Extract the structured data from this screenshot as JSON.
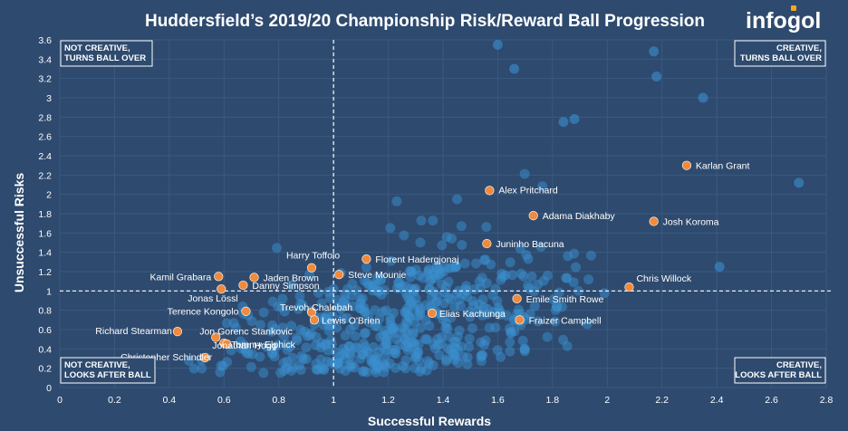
{
  "chart_data": {
    "type": "scatter",
    "title": "Huddersfield’s 2019/20 Championship Risk/Reward Ball Progression",
    "xlabel": "Successful Rewards",
    "ylabel": "Unsuccessful Risks",
    "xlim": [
      0,
      2.8
    ],
    "ylim": [
      0,
      3.6
    ],
    "xticks": [
      0,
      0.2,
      0.4,
      0.6,
      0.8,
      1,
      1.2,
      1.4,
      1.6,
      1.8,
      2,
      2.2,
      2.4,
      2.6,
      2.8
    ],
    "yticks": [
      0,
      0.2,
      0.4,
      0.6,
      0.8,
      1,
      1.2,
      1.4,
      1.6,
      1.8,
      2,
      2.2,
      2.4,
      2.6,
      2.8,
      3,
      3.2,
      3.4,
      3.6
    ],
    "reference_lines": {
      "x": 1,
      "y": 1
    },
    "quadrants": {
      "top_left": [
        "NOT CREATIVE,",
        "TURNS BALL OVER"
      ],
      "top_right": [
        "CREATIVE,",
        "TURNS BALL OVER"
      ],
      "bottom_left": [
        "NOT CREATIVE,",
        "LOOKS AFTER BALL"
      ],
      "bottom_right": [
        "CREATIVE,",
        "LOOKS AFTER BALL"
      ]
    },
    "colors": {
      "background": "#2e4a6e",
      "league_point": "#3a8fd0",
      "highlight_point": "#f08a3c"
    },
    "highlighted": [
      {
        "name": "Karlan Grant",
        "x": 2.29,
        "y": 2.3
      },
      {
        "name": "Alex Pritchard",
        "x": 1.57,
        "y": 2.04
      },
      {
        "name": "Adama Diakhaby",
        "x": 1.73,
        "y": 1.78
      },
      {
        "name": "Josh Koroma",
        "x": 2.17,
        "y": 1.72
      },
      {
        "name": "Juninho Bacuna",
        "x": 1.56,
        "y": 1.49
      },
      {
        "name": "Florent Hadergjonaj",
        "x": 1.12,
        "y": 1.33
      },
      {
        "name": "Harry Toffolo",
        "x": 0.92,
        "y": 1.24
      },
      {
        "name": "Steve Mounie",
        "x": 1.02,
        "y": 1.17
      },
      {
        "name": "Kamil Grabara",
        "x": 0.58,
        "y": 1.15
      },
      {
        "name": "Jaden Brown",
        "x": 0.71,
        "y": 1.14
      },
      {
        "name": "Danny Simpson",
        "x": 0.67,
        "y": 1.06
      },
      {
        "name": "Jonas Lössl",
        "x": 0.59,
        "y": 1.02
      },
      {
        "name": "Chris Willock",
        "x": 2.08,
        "y": 1.04
      },
      {
        "name": "Emile Smith Rowe",
        "x": 1.67,
        "y": 0.92
      },
      {
        "name": "Trevoh Chalobah",
        "x": 0.92,
        "y": 0.78
      },
      {
        "name": "Terence Kongolo",
        "x": 0.68,
        "y": 0.79
      },
      {
        "name": "Elias Kachunga",
        "x": 1.36,
        "y": 0.77
      },
      {
        "name": "Lewis O'Brien",
        "x": 0.93,
        "y": 0.7
      },
      {
        "name": "Fraizer Campbell",
        "x": 1.68,
        "y": 0.7
      },
      {
        "name": "Richard Stearman",
        "x": 0.43,
        "y": 0.58
      },
      {
        "name": "Jon Gorenc Stankovic",
        "x": 0.57,
        "y": 0.52
      },
      {
        "name": "Tommy Elphick",
        "x": 0.6,
        "y": 0.46
      },
      {
        "name": "Jonathan Hogg",
        "x": 0.61,
        "y": 0.45
      },
      {
        "name": "Christopher Schindler",
        "x": 0.53,
        "y": 0.31
      }
    ]
  },
  "logo": {
    "text": "infogol"
  }
}
